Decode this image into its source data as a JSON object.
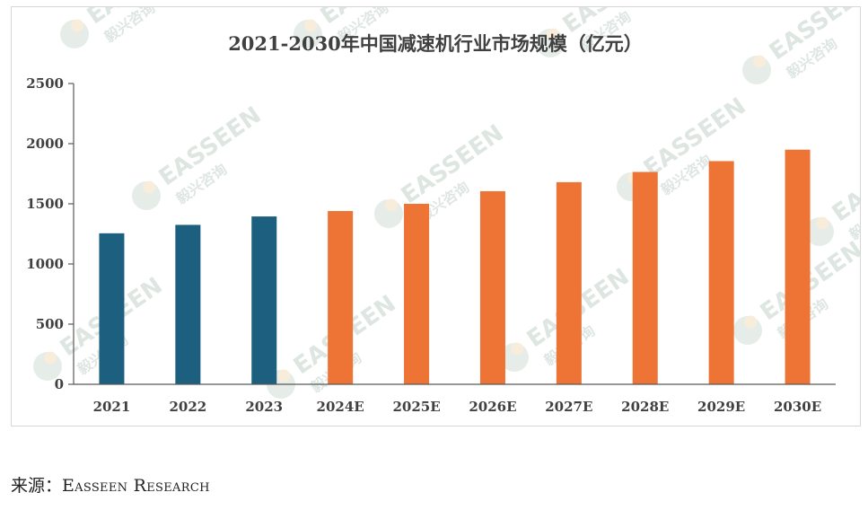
{
  "chart_data": {
    "type": "bar",
    "title": "2021-2030年中国减速机行业市场规模（亿元）",
    "categories": [
      "2021",
      "2022",
      "2023",
      "2024E",
      "2025E",
      "2026E",
      "2027E",
      "2028E",
      "2029E",
      "2030E"
    ],
    "values": [
      1255,
      1325,
      1395,
      1440,
      1500,
      1605,
      1680,
      1765,
      1855,
      1950
    ],
    "ylim": [
      0,
      2500
    ],
    "yticks": [
      0,
      500,
      1000,
      1500,
      2000,
      2500
    ],
    "xlabel": "",
    "ylabel": "",
    "grid": false,
    "legend": "none",
    "colors": {
      "actual": "#1c5f7e",
      "estimate": "#ee7435"
    },
    "actual_count": 3
  },
  "source": {
    "label": "来源：",
    "brand": "Easseen Research"
  },
  "watermark": {
    "brand_en": "EASSEEN",
    "brand_cn": "毅兴咨询",
    "icon": "easseen-logo-icon"
  }
}
